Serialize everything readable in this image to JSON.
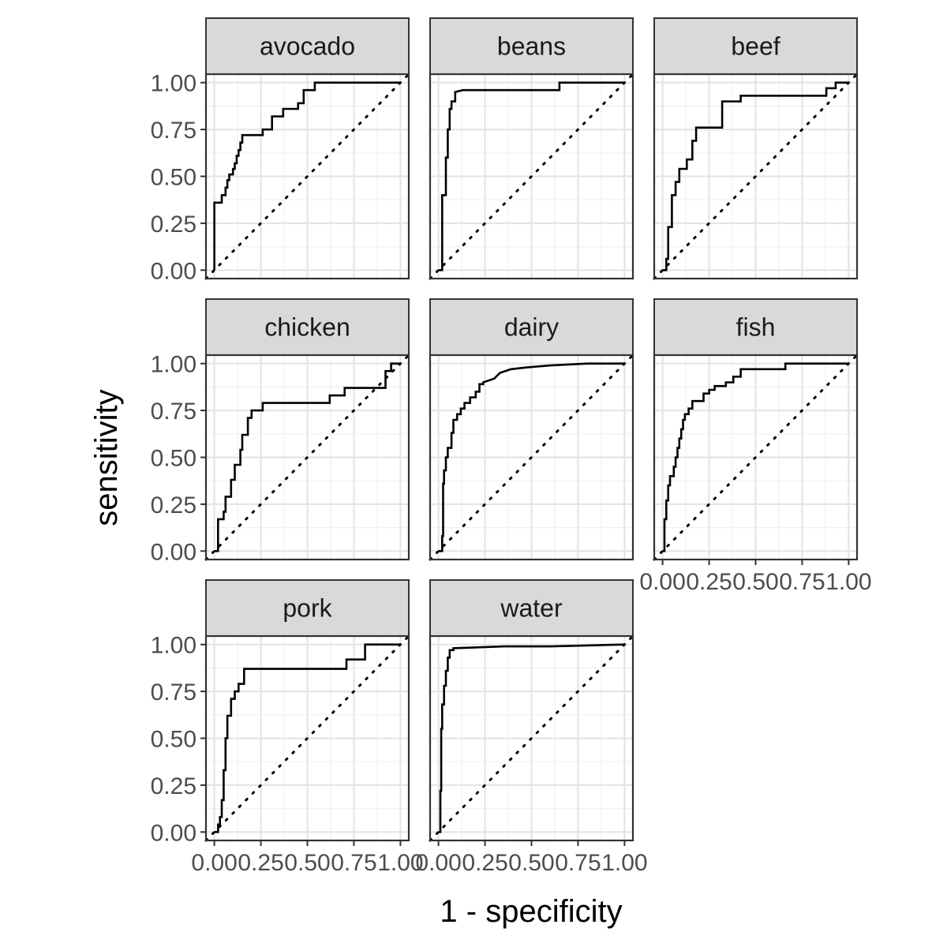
{
  "chart_data": {
    "type": "line",
    "layout": "facet_wrap",
    "xlabel": "1 - specificity",
    "ylabel": "sensitivity",
    "xlim": [
      0,
      1
    ],
    "ylim": [
      0,
      1
    ],
    "x_ticks": [
      "0.00",
      "0.25",
      "0.50",
      "0.75",
      "1.00"
    ],
    "y_ticks": [
      "0.00",
      "0.25",
      "0.50",
      "0.75",
      "1.00"
    ],
    "grid": true,
    "reference_line": "diagonal (dotted)",
    "panels": [
      {
        "label": "avocado",
        "points": [
          [
            0,
            0
          ],
          [
            0,
            0.36
          ],
          [
            0.04,
            0.36
          ],
          [
            0.04,
            0.4
          ],
          [
            0.06,
            0.4
          ],
          [
            0.06,
            0.44
          ],
          [
            0.07,
            0.44
          ],
          [
            0.07,
            0.48
          ],
          [
            0.08,
            0.48
          ],
          [
            0.08,
            0.51
          ],
          [
            0.1,
            0.51
          ],
          [
            0.1,
            0.54
          ],
          [
            0.11,
            0.54
          ],
          [
            0.11,
            0.57
          ],
          [
            0.12,
            0.57
          ],
          [
            0.12,
            0.61
          ],
          [
            0.13,
            0.61
          ],
          [
            0.13,
            0.64
          ],
          [
            0.14,
            0.64
          ],
          [
            0.14,
            0.68
          ],
          [
            0.15,
            0.68
          ],
          [
            0.15,
            0.72
          ],
          [
            0.26,
            0.72
          ],
          [
            0.26,
            0.75
          ],
          [
            0.31,
            0.75
          ],
          [
            0.31,
            0.82
          ],
          [
            0.37,
            0.82
          ],
          [
            0.37,
            0.86
          ],
          [
            0.45,
            0.86
          ],
          [
            0.45,
            0.89
          ],
          [
            0.48,
            0.89
          ],
          [
            0.48,
            0.96
          ],
          [
            0.54,
            0.96
          ],
          [
            0.54,
            1.0
          ],
          [
            1.0,
            1.0
          ]
        ]
      },
      {
        "label": "beans",
        "points": [
          [
            0,
            0
          ],
          [
            0.02,
            0
          ],
          [
            0.02,
            0.4
          ],
          [
            0.04,
            0.4
          ],
          [
            0.04,
            0.6
          ],
          [
            0.05,
            0.6
          ],
          [
            0.05,
            0.75
          ],
          [
            0.06,
            0.75
          ],
          [
            0.06,
            0.86
          ],
          [
            0.07,
            0.86
          ],
          [
            0.07,
            0.9
          ],
          [
            0.09,
            0.9
          ],
          [
            0.09,
            0.95
          ],
          [
            0.13,
            0.96
          ],
          [
            0.65,
            0.96
          ],
          [
            0.65,
            1.0
          ],
          [
            1.0,
            1.0
          ]
        ]
      },
      {
        "label": "beef",
        "points": [
          [
            0,
            0
          ],
          [
            0.02,
            0
          ],
          [
            0.02,
            0.06
          ],
          [
            0.03,
            0.06
          ],
          [
            0.03,
            0.23
          ],
          [
            0.05,
            0.23
          ],
          [
            0.05,
            0.4
          ],
          [
            0.07,
            0.4
          ],
          [
            0.07,
            0.47
          ],
          [
            0.09,
            0.47
          ],
          [
            0.09,
            0.54
          ],
          [
            0.13,
            0.54
          ],
          [
            0.13,
            0.59
          ],
          [
            0.16,
            0.59
          ],
          [
            0.16,
            0.69
          ],
          [
            0.18,
            0.69
          ],
          [
            0.18,
            0.76
          ],
          [
            0.32,
            0.76
          ],
          [
            0.32,
            0.9
          ],
          [
            0.42,
            0.9
          ],
          [
            0.42,
            0.93
          ],
          [
            0.88,
            0.93
          ],
          [
            0.88,
            0.97
          ],
          [
            0.93,
            0.97
          ],
          [
            0.93,
            1.0
          ],
          [
            1.0,
            1.0
          ]
        ]
      },
      {
        "label": "chicken",
        "points": [
          [
            0,
            0
          ],
          [
            0.02,
            0
          ],
          [
            0.02,
            0.17
          ],
          [
            0.05,
            0.17
          ],
          [
            0.05,
            0.21
          ],
          [
            0.06,
            0.21
          ],
          [
            0.06,
            0.29
          ],
          [
            0.09,
            0.29
          ],
          [
            0.09,
            0.38
          ],
          [
            0.11,
            0.38
          ],
          [
            0.11,
            0.46
          ],
          [
            0.14,
            0.46
          ],
          [
            0.14,
            0.54
          ],
          [
            0.15,
            0.54
          ],
          [
            0.15,
            0.62
          ],
          [
            0.18,
            0.62
          ],
          [
            0.18,
            0.71
          ],
          [
            0.2,
            0.71
          ],
          [
            0.2,
            0.75
          ],
          [
            0.26,
            0.75
          ],
          [
            0.26,
            0.79
          ],
          [
            0.62,
            0.79
          ],
          [
            0.62,
            0.83
          ],
          [
            0.7,
            0.83
          ],
          [
            0.7,
            0.87
          ],
          [
            0.92,
            0.87
          ],
          [
            0.92,
            0.96
          ],
          [
            0.95,
            0.96
          ],
          [
            0.95,
            1.0
          ],
          [
            1.0,
            1.0
          ]
        ]
      },
      {
        "label": "dairy",
        "points": [
          [
            0,
            0
          ],
          [
            0.02,
            0
          ],
          [
            0.02,
            0.08
          ],
          [
            0.025,
            0.08
          ],
          [
            0.025,
            0.36
          ],
          [
            0.03,
            0.36
          ],
          [
            0.03,
            0.43
          ],
          [
            0.04,
            0.43
          ],
          [
            0.04,
            0.5
          ],
          [
            0.05,
            0.5
          ],
          [
            0.05,
            0.55
          ],
          [
            0.07,
            0.55
          ],
          [
            0.07,
            0.63
          ],
          [
            0.08,
            0.63
          ],
          [
            0.08,
            0.7
          ],
          [
            0.1,
            0.7
          ],
          [
            0.1,
            0.73
          ],
          [
            0.12,
            0.73
          ],
          [
            0.12,
            0.76
          ],
          [
            0.14,
            0.76
          ],
          [
            0.14,
            0.79
          ],
          [
            0.17,
            0.79
          ],
          [
            0.17,
            0.82
          ],
          [
            0.2,
            0.82
          ],
          [
            0.2,
            0.85
          ],
          [
            0.22,
            0.85
          ],
          [
            0.22,
            0.89
          ],
          [
            0.24,
            0.89
          ],
          [
            0.24,
            0.9
          ],
          [
            0.3,
            0.92
          ],
          [
            0.33,
            0.95
          ],
          [
            0.39,
            0.97
          ],
          [
            0.48,
            0.98
          ],
          [
            0.6,
            0.99
          ],
          [
            0.8,
            1.0
          ],
          [
            1.0,
            1.0
          ]
        ]
      },
      {
        "label": "fish",
        "points": [
          [
            0,
            0
          ],
          [
            0.01,
            0
          ],
          [
            0.01,
            0.17
          ],
          [
            0.02,
            0.17
          ],
          [
            0.02,
            0.27
          ],
          [
            0.03,
            0.27
          ],
          [
            0.03,
            0.35
          ],
          [
            0.04,
            0.35
          ],
          [
            0.04,
            0.4
          ],
          [
            0.06,
            0.4
          ],
          [
            0.06,
            0.45
          ],
          [
            0.07,
            0.45
          ],
          [
            0.07,
            0.5
          ],
          [
            0.08,
            0.5
          ],
          [
            0.08,
            0.55
          ],
          [
            0.09,
            0.55
          ],
          [
            0.09,
            0.6
          ],
          [
            0.1,
            0.6
          ],
          [
            0.1,
            0.65
          ],
          [
            0.11,
            0.65
          ],
          [
            0.11,
            0.7
          ],
          [
            0.12,
            0.7
          ],
          [
            0.12,
            0.73
          ],
          [
            0.14,
            0.73
          ],
          [
            0.14,
            0.76
          ],
          [
            0.16,
            0.76
          ],
          [
            0.16,
            0.8
          ],
          [
            0.22,
            0.8
          ],
          [
            0.22,
            0.84
          ],
          [
            0.25,
            0.84
          ],
          [
            0.25,
            0.86
          ],
          [
            0.28,
            0.86
          ],
          [
            0.28,
            0.88
          ],
          [
            0.34,
            0.88
          ],
          [
            0.34,
            0.9
          ],
          [
            0.38,
            0.9
          ],
          [
            0.38,
            0.93
          ],
          [
            0.42,
            0.93
          ],
          [
            0.42,
            0.97
          ],
          [
            0.66,
            0.97
          ],
          [
            0.66,
            1.0
          ],
          [
            1.0,
            1.0
          ]
        ]
      },
      {
        "label": "pork",
        "points": [
          [
            0,
            0
          ],
          [
            0.02,
            0
          ],
          [
            0.02,
            0.04
          ],
          [
            0.03,
            0.04
          ],
          [
            0.03,
            0.08
          ],
          [
            0.04,
            0.08
          ],
          [
            0.04,
            0.17
          ],
          [
            0.05,
            0.17
          ],
          [
            0.05,
            0.33
          ],
          [
            0.06,
            0.33
          ],
          [
            0.06,
            0.5
          ],
          [
            0.07,
            0.5
          ],
          [
            0.07,
            0.62
          ],
          [
            0.09,
            0.62
          ],
          [
            0.09,
            0.71
          ],
          [
            0.11,
            0.71
          ],
          [
            0.11,
            0.75
          ],
          [
            0.13,
            0.75
          ],
          [
            0.13,
            0.79
          ],
          [
            0.16,
            0.79
          ],
          [
            0.16,
            0.87
          ],
          [
            0.71,
            0.87
          ],
          [
            0.71,
            0.92
          ],
          [
            0.81,
            0.92
          ],
          [
            0.81,
            1.0
          ],
          [
            1.0,
            1.0
          ]
        ]
      },
      {
        "label": "water",
        "points": [
          [
            0,
            0
          ],
          [
            0.01,
            0
          ],
          [
            0.01,
            0.22
          ],
          [
            0.015,
            0.22
          ],
          [
            0.015,
            0.55
          ],
          [
            0.02,
            0.55
          ],
          [
            0.02,
            0.68
          ],
          [
            0.03,
            0.68
          ],
          [
            0.03,
            0.78
          ],
          [
            0.04,
            0.78
          ],
          [
            0.04,
            0.86
          ],
          [
            0.05,
            0.86
          ],
          [
            0.05,
            0.93
          ],
          [
            0.06,
            0.93
          ],
          [
            0.06,
            0.97
          ],
          [
            0.08,
            0.97
          ],
          [
            0.08,
            0.98
          ],
          [
            0.35,
            0.99
          ],
          [
            0.6,
            0.99
          ],
          [
            1.0,
            1.0
          ]
        ]
      }
    ]
  }
}
